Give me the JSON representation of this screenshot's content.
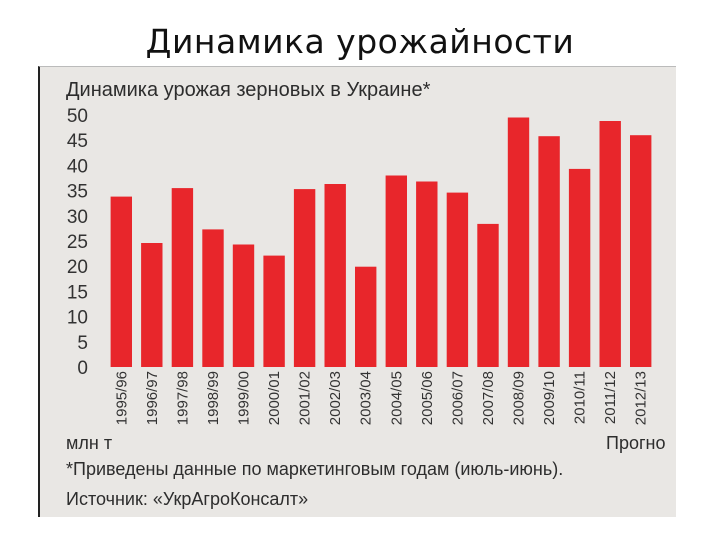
{
  "slide": {
    "title": "Динамика урожайности"
  },
  "chart_data": {
    "type": "bar",
    "title": "Динамика урожая зерновых в Украине*",
    "xlabel": "",
    "ylabel": "",
    "unit_label": "млн т",
    "forecast_label": "Прогно",
    "footnote": "*Приведены данные по маркетинговым годам (июль-июнь).",
    "source": "Источник: «УкрАгроКонсалт»",
    "ylim": [
      0,
      50
    ],
    "yticks": [
      "50",
      "45",
      "40",
      "35",
      "30",
      "25",
      "20",
      "15",
      "10",
      "5",
      "0"
    ],
    "grid": false,
    "bar_color": "#e8262b",
    "categories": [
      "1995/96",
      "1996/97",
      "1997/98",
      "1998/99",
      "1999/00",
      "2000/01",
      "2001/02",
      "2002/03",
      "2003/04",
      "2004/05",
      "2005/06",
      "2006/07",
      "2007/08",
      "2008/09",
      "2009/10",
      "2010/11",
      "2011/12",
      "2012/13"
    ],
    "values": [
      33.8,
      24.6,
      35.5,
      27.3,
      24.3,
      22.1,
      35.3,
      36.3,
      19.9,
      38.0,
      36.8,
      34.6,
      28.4,
      49.5,
      45.8,
      39.3,
      48.8,
      46.0
    ]
  }
}
